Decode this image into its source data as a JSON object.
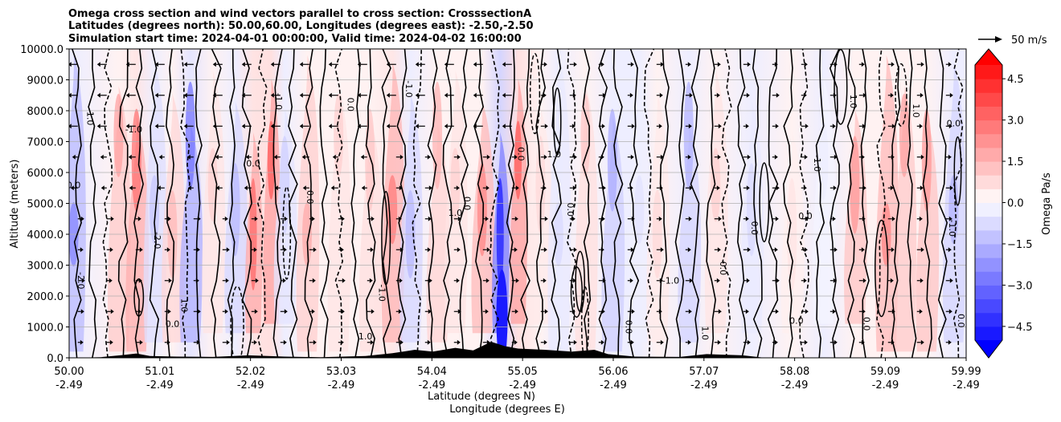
{
  "chart_data": {
    "type": "contourf",
    "title_lines": [
      "Omega cross section and wind vectors parallel to cross section: CrosssectionA",
      "Latitudes (degrees north): 50.00,60.00, Longitudes (degrees east): -2.50,-2.50",
      "Simulation start time: 2024-04-01 00:00:00, Valid time: 2024-04-02 16:00:00"
    ],
    "ylabel": "Altitude (meters)",
    "xlabel_lines": [
      "Latitude (degrees N)",
      "Longitude (degrees E)"
    ],
    "ylim": [
      0,
      10000
    ],
    "y_ticks": [
      {
        "value": 0,
        "label": "0.0"
      },
      {
        "value": 1000,
        "label": "1000.0"
      },
      {
        "value": 2000,
        "label": "2000.0"
      },
      {
        "value": 3000,
        "label": "3000.0"
      },
      {
        "value": 4000,
        "label": "4000.0"
      },
      {
        "value": 5000,
        "label": "5000.0"
      },
      {
        "value": 6000,
        "label": "6000.0"
      },
      {
        "value": 7000,
        "label": "7000.0"
      },
      {
        "value": 8000,
        "label": "8000.0"
      },
      {
        "value": 9000,
        "label": "9000.0"
      },
      {
        "value": 10000,
        "label": "10000.0"
      }
    ],
    "xlim": [
      50.0,
      59.99
    ],
    "x_ticks": [
      {
        "value": 50.0,
        "lat": "50.00",
        "lon": "-2.49"
      },
      {
        "value": 51.01,
        "lat": "51.01",
        "lon": "-2.49"
      },
      {
        "value": 52.02,
        "lat": "52.02",
        "lon": "-2.49"
      },
      {
        "value": 53.03,
        "lat": "53.03",
        "lon": "-2.49"
      },
      {
        "value": 54.04,
        "lat": "54.04",
        "lon": "-2.49"
      },
      {
        "value": 55.05,
        "lat": "55.05",
        "lon": "-2.49"
      },
      {
        "value": 56.06,
        "lat": "56.06",
        "lon": "-2.49"
      },
      {
        "value": 57.07,
        "lat": "57.07",
        "lon": "-2.49"
      },
      {
        "value": 58.08,
        "lat": "58.08",
        "lon": "-2.49"
      },
      {
        "value": 59.09,
        "lat": "59.09",
        "lon": "-2.49"
      },
      {
        "value": 59.99,
        "lat": "59.99",
        "lon": "-2.49"
      }
    ],
    "grid": true,
    "colorbar": {
      "label": "Omega Pa/s",
      "range": [
        -5.0,
        5.0
      ],
      "extend": "both",
      "ticks": [
        {
          "value": 4.5,
          "label": "4.5"
        },
        {
          "value": 3.0,
          "label": "3.0"
        },
        {
          "value": 1.5,
          "label": "1.5"
        },
        {
          "value": 0.0,
          "label": "0.0"
        },
        {
          "value": -1.5,
          "label": "−1.5"
        },
        {
          "value": -3.0,
          "label": "−3.0"
        },
        {
          "value": -4.5,
          "label": "−4.5"
        }
      ]
    },
    "vector_key": {
      "label": "50 m/s",
      "speed": 50
    },
    "contour_levels": [
      -2.0,
      -1.0,
      0.0,
      1.0
    ],
    "bands": [
      {
        "lat": 50.05,
        "omega": -2.6
      },
      {
        "lat": 50.55,
        "omega": 2.0
      },
      {
        "lat": 50.75,
        "omega": 3.0
      },
      {
        "lat": 50.95,
        "omega": -1.2
      },
      {
        "lat": 51.15,
        "omega": 1.5
      },
      {
        "lat": 51.35,
        "omega": -3.0
      },
      {
        "lat": 51.6,
        "omega": 1.0
      },
      {
        "lat": 51.85,
        "omega": -1.5
      },
      {
        "lat": 52.05,
        "omega": 3.2
      },
      {
        "lat": 52.25,
        "omega": 3.5
      },
      {
        "lat": 52.4,
        "omega": -1.0
      },
      {
        "lat": 52.65,
        "omega": 1.8
      },
      {
        "lat": 53.0,
        "omega": 1.0
      },
      {
        "lat": 53.35,
        "omega": 1.2
      },
      {
        "lat": 53.6,
        "omega": 2.8
      },
      {
        "lat": 53.8,
        "omega": -1.5
      },
      {
        "lat": 54.1,
        "omega": 1.6
      },
      {
        "lat": 54.3,
        "omega": 1.0
      },
      {
        "lat": 54.6,
        "omega": 2.6
      },
      {
        "lat": 54.8,
        "omega": -4.8
      },
      {
        "lat": 55.0,
        "omega": 3.5
      },
      {
        "lat": 55.25,
        "omega": 0.8
      },
      {
        "lat": 55.45,
        "omega": -0.8
      },
      {
        "lat": 55.75,
        "omega": 1.2
      },
      {
        "lat": 56.05,
        "omega": -1.8
      },
      {
        "lat": 56.35,
        "omega": -0.6
      },
      {
        "lat": 56.55,
        "omega": 0.8
      },
      {
        "lat": 56.9,
        "omega": -1.6
      },
      {
        "lat": 57.2,
        "omega": 1.0
      },
      {
        "lat": 57.6,
        "omega": -0.8
      },
      {
        "lat": 58.05,
        "omega": 0.6
      },
      {
        "lat": 58.4,
        "omega": -0.4
      },
      {
        "lat": 58.75,
        "omega": 2.2
      },
      {
        "lat": 59.1,
        "omega": 2.6
      },
      {
        "lat": 59.3,
        "omega": 2.0
      },
      {
        "lat": 59.55,
        "omega": 2.2
      },
      {
        "lat": 59.85,
        "omega": -1.6
      }
    ],
    "contour_labels": [
      {
        "text": "0.0",
        "lat": 50.05,
        "alt": 5500
      },
      {
        "text": "-2.0",
        "lat": 50.1,
        "alt": 2500
      },
      {
        "text": "-1.0",
        "lat": 50.2,
        "alt": 7800
      },
      {
        "text": "-1.0",
        "lat": 50.72,
        "alt": 7300
      },
      {
        "text": "-2.0",
        "lat": 50.95,
        "alt": 3800
      },
      {
        "text": "-1.0",
        "lat": 52.3,
        "alt": 8300
      },
      {
        "text": "0.0",
        "lat": 51.15,
        "alt": 1000
      },
      {
        "text": "1.0",
        "lat": 51.25,
        "alt": 1700
      },
      {
        "text": "0.0",
        "lat": 52.65,
        "alt": 5200
      },
      {
        "text": "1.0",
        "lat": 53.3,
        "alt": 600
      },
      {
        "text": "-1.0",
        "lat": 53.45,
        "alt": 2100
      },
      {
        "text": "0.0",
        "lat": 54.4,
        "alt": 5000
      },
      {
        "text": "1.0",
        "lat": 54.3,
        "alt": 4600
      },
      {
        "text": "0.0",
        "lat": 55.55,
        "alt": 4800
      },
      {
        "text": "0.0",
        "lat": 55.0,
        "alt": 6600
      },
      {
        "text": "1.0",
        "lat": 55.4,
        "alt": 6500
      },
      {
        "text": "0.0",
        "lat": 56.2,
        "alt": 1000
      },
      {
        "text": "1.0",
        "lat": 57.05,
        "alt": 800
      },
      {
        "text": "-1.0",
        "lat": 56.7,
        "alt": 2400
      },
      {
        "text": "0.0",
        "lat": 57.25,
        "alt": 2900
      },
      {
        "text": "0.0",
        "lat": 57.6,
        "alt": 4200
      },
      {
        "text": "0.0",
        "lat": 58.2,
        "alt": 4500
      },
      {
        "text": "-1.0",
        "lat": 58.3,
        "alt": 6300
      },
      {
        "text": "1.0",
        "lat": 58.7,
        "alt": 8300
      },
      {
        "text": "0.0",
        "lat": 58.1,
        "alt": 1100
      },
      {
        "text": "0.0",
        "lat": 58.85,
        "alt": 1100
      },
      {
        "text": "1.0",
        "lat": 59.4,
        "alt": 8000
      },
      {
        "text": "0.0",
        "lat": 59.85,
        "alt": 7500
      },
      {
        "text": "-1.0",
        "lat": 59.8,
        "alt": 4200
      },
      {
        "text": "0.0",
        "lat": 59.9,
        "alt": 1200
      },
      {
        "text": "0.0",
        "lat": 52.05,
        "alt": 6200
      },
      {
        "text": "0.0",
        "lat": 53.1,
        "alt": 8200
      },
      {
        "text": "-1.0",
        "lat": 53.75,
        "alt": 8700
      }
    ],
    "terrain": [
      {
        "lat": 50.0,
        "alt": 0
      },
      {
        "lat": 50.35,
        "alt": 20
      },
      {
        "lat": 50.6,
        "alt": 90
      },
      {
        "lat": 50.75,
        "alt": 140
      },
      {
        "lat": 50.9,
        "alt": 60
      },
      {
        "lat": 51.2,
        "alt": 40
      },
      {
        "lat": 51.6,
        "alt": 30
      },
      {
        "lat": 52.0,
        "alt": 80
      },
      {
        "lat": 52.4,
        "alt": 40
      },
      {
        "lat": 52.8,
        "alt": 20
      },
      {
        "lat": 53.3,
        "alt": 60
      },
      {
        "lat": 53.6,
        "alt": 150
      },
      {
        "lat": 53.85,
        "alt": 260
      },
      {
        "lat": 54.05,
        "alt": 200
      },
      {
        "lat": 54.3,
        "alt": 320
      },
      {
        "lat": 54.5,
        "alt": 240
      },
      {
        "lat": 54.7,
        "alt": 520
      },
      {
        "lat": 54.85,
        "alt": 380
      },
      {
        "lat": 55.0,
        "alt": 300
      },
      {
        "lat": 55.3,
        "alt": 260
      },
      {
        "lat": 55.6,
        "alt": 200
      },
      {
        "lat": 55.85,
        "alt": 260
      },
      {
        "lat": 56.0,
        "alt": 120
      },
      {
        "lat": 56.3,
        "alt": 40
      },
      {
        "lat": 56.8,
        "alt": 30
      },
      {
        "lat": 57.1,
        "alt": 120
      },
      {
        "lat": 57.5,
        "alt": 80
      },
      {
        "lat": 57.75,
        "alt": 0
      },
      {
        "lat": 59.99,
        "alt": 0
      }
    ]
  }
}
